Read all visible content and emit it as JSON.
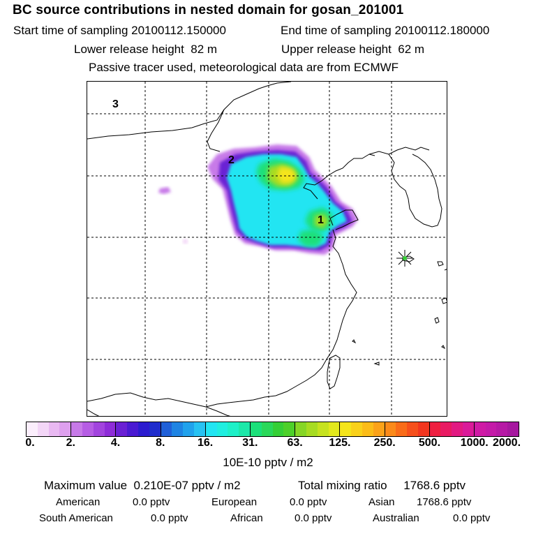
{
  "title": "BC  source contributions in nested domain for gosan_201001",
  "header": {
    "start_label": "Start time of sampling",
    "start_value": "20100112.150000",
    "end_label": "End time of sampling",
    "end_value": "20100112.180000",
    "lower_label": "Lower release height",
    "lower_value": "82 m",
    "upper_label": "Upper release height",
    "upper_value": "62 m",
    "note": "Passive tracer used, meteorological data are from ECMWF"
  },
  "map": {
    "region_labels": [
      "1",
      "2",
      "3"
    ],
    "receptor_marker": "receptor-star",
    "colors": {
      "land_line": "#000000",
      "grid_line": "#000000"
    }
  },
  "colorbar": {
    "tick_labels": [
      "0.",
      "2.",
      "4.",
      "8.",
      "16.",
      "31.",
      "63.",
      "125.",
      "250.",
      "500.",
      "1000.",
      "2000."
    ],
    "colors": [
      "#fbeefc",
      "#f3d6f7",
      "#e9b9f2",
      "#dea0ee",
      "#c77ae8",
      "#b65de4",
      "#a244de",
      "#8e2cd8",
      "#6a20d4",
      "#4a1ad2",
      "#2c1ccf",
      "#1f2dcc",
      "#2060d8",
      "#1f84e3",
      "#21a2ec",
      "#27c2f2",
      "#22e5f2",
      "#20eee0",
      "#1ef0c8",
      "#1ce8a9",
      "#1ce07a",
      "#2ad85a",
      "#35cf36",
      "#4dd02a",
      "#86d626",
      "#a7dc22",
      "#c6e21f",
      "#e2e81c",
      "#f5e51a",
      "#f9d11a",
      "#fbbc18",
      "#fba219",
      "#fb8a1a",
      "#f96c19",
      "#f6501c",
      "#f2361f",
      "#ee1f40",
      "#e91b63",
      "#e21a82",
      "#da1a99",
      "#cf1aa5",
      "#c41aa8",
      "#b619a5",
      "#a6189f",
      "#921792",
      "#7c1580",
      "#661369",
      "#4d0f4f"
    ],
    "unit": "10E-10 pptv / m2"
  },
  "stats": {
    "max_label": "Maximum value",
    "max_value": "0.210E-07 pptv / m2",
    "total_label": "Total mixing ratio",
    "total_value": "1768.6 pptv",
    "rows": [
      [
        {
          "name": "American",
          "value": "0.0 pptv"
        },
        {
          "name": "European",
          "value": "0.0 pptv"
        },
        {
          "name": "Asian",
          "value": "1768.6 pptv"
        }
      ],
      [
        {
          "name": "South American",
          "value": "0.0 pptv"
        },
        {
          "name": "African",
          "value": "0.0 pptv"
        },
        {
          "name": "Australian",
          "value": "0.0 pptv"
        }
      ]
    ]
  }
}
